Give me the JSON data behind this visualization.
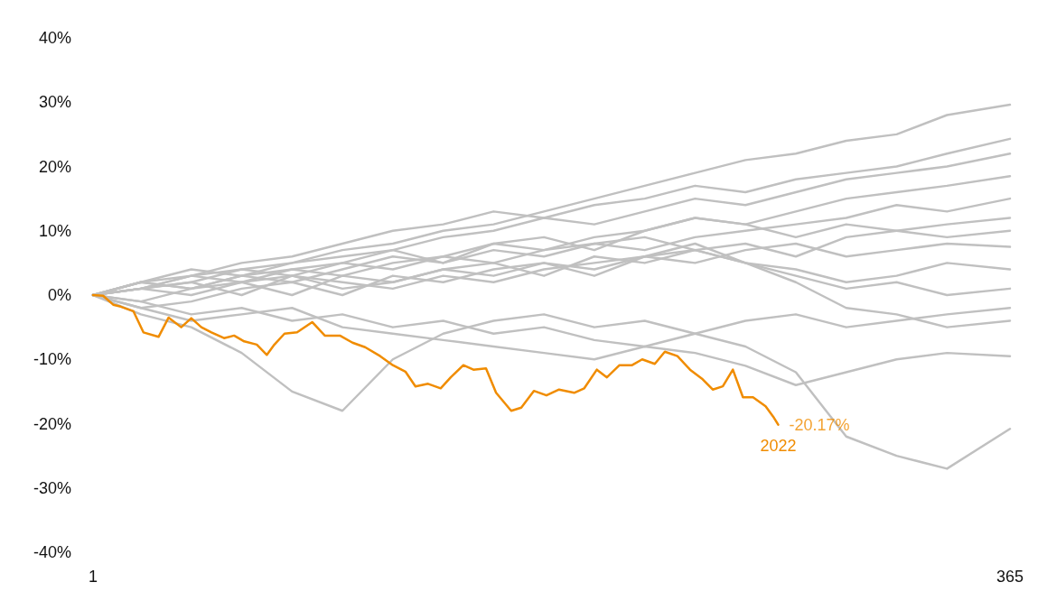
{
  "chart_data": {
    "type": "line",
    "marker": "none",
    "line_style": "solid",
    "x": [
      1,
      20,
      40,
      60,
      80,
      100,
      120,
      140,
      160,
      180,
      200,
      220,
      240,
      260,
      280,
      300,
      320,
      340,
      365
    ],
    "xlim": [
      1,
      365
    ],
    "xticks": [
      1,
      365
    ],
    "ylim": [
      -40,
      40
    ],
    "yticks": [
      {
        "value": -40,
        "label": "-40%"
      },
      {
        "value": -30,
        "label": "-30%"
      },
      {
        "value": -20,
        "label": "-20%"
      },
      {
        "value": -10,
        "label": "-10%"
      },
      {
        "value": 0,
        "label": "0%"
      },
      {
        "value": 10,
        "label": "10%"
      },
      {
        "value": 20,
        "label": "20%"
      },
      {
        "value": 30,
        "label": "30%"
      },
      {
        "value": 40,
        "label": "40%"
      }
    ],
    "annotations": [
      {
        "text": "-20.17%",
        "x": 273,
        "y": -20.17
      }
    ],
    "series": [
      {
        "color": "#c0c0c0",
        "values": [
          0,
          1,
          3,
          4,
          5,
          7,
          8,
          10,
          11,
          13,
          15,
          17,
          19,
          21,
          22,
          24,
          25,
          28,
          29.6
        ]
      },
      {
        "color": "#c0c0c0",
        "values": [
          0,
          2,
          3,
          5,
          6,
          8,
          10,
          11,
          13,
          12,
          14,
          15,
          17,
          16,
          18,
          19,
          20,
          22,
          24.3
        ]
      },
      {
        "color": "#c0c0c0",
        "values": [
          0,
          1,
          2,
          4,
          3,
          5,
          7,
          9,
          10,
          12,
          11,
          13,
          15,
          14,
          16,
          18,
          19,
          20,
          22
        ]
      },
      {
        "color": "#c0c0c0",
        "values": [
          0,
          2,
          1,
          3,
          4,
          3,
          5,
          6,
          8,
          7,
          9,
          10,
          12,
          11,
          13,
          15,
          16,
          17,
          18.5
        ]
      },
      {
        "color": "#c0c0c0",
        "values": [
          0,
          1,
          3,
          2,
          4,
          5,
          4,
          6,
          5,
          7,
          8,
          7,
          9,
          10,
          11,
          12,
          14,
          13,
          15
        ]
      },
      {
        "color": "#c0c0c0",
        "values": [
          0,
          -1,
          1,
          2,
          0,
          3,
          2,
          4,
          5,
          3,
          6,
          5,
          7,
          8,
          6,
          9,
          10,
          11,
          12
        ]
      },
      {
        "color": "#c0c0c0",
        "values": [
          0,
          2,
          4,
          3,
          5,
          6,
          7,
          5,
          8,
          9,
          7,
          10,
          12,
          11,
          9,
          11,
          10,
          9,
          10
        ]
      },
      {
        "color": "#c0c0c0",
        "values": [
          0,
          1,
          0,
          2,
          3,
          1,
          2,
          4,
          3,
          5,
          4,
          6,
          5,
          7,
          8,
          6,
          7,
          8,
          7.5
        ]
      },
      {
        "color": "#c0c0c0",
        "values": [
          0,
          -2,
          -1,
          1,
          2,
          0,
          3,
          2,
          4,
          5,
          3,
          6,
          7,
          5,
          4,
          2,
          3,
          5,
          4
        ]
      },
      {
        "color": "#c0c0c0",
        "values": [
          0,
          2,
          1,
          3,
          2,
          4,
          6,
          5,
          7,
          6,
          8,
          9,
          7,
          5,
          3,
          1,
          2,
          0,
          1
        ]
      },
      {
        "color": "#c0c0c0",
        "values": [
          0,
          -1,
          -3,
          -2,
          -4,
          -3,
          -5,
          -4,
          -6,
          -5,
          -7,
          -8,
          -6,
          -4,
          -3,
          -5,
          -4,
          -3,
          -2
        ]
      },
      {
        "color": "#c0c0c0",
        "values": [
          0,
          1,
          2,
          0,
          3,
          2,
          1,
          3,
          2,
          4,
          5,
          6,
          8,
          5,
          2,
          -2,
          -3,
          -5,
          -4
        ]
      },
      {
        "color": "#c0c0c0",
        "values": [
          0,
          -2,
          -4,
          -3,
          -2,
          -5,
          -6,
          -7,
          -8,
          -9,
          -10,
          -8,
          -9,
          -11,
          -14,
          -12,
          -10,
          -9,
          -9.5
        ]
      },
      {
        "color": "#c0c0c0",
        "values": [
          0,
          -3,
          -5,
          -9,
          -15,
          -18,
          -10,
          -6,
          -4,
          -3,
          -5,
          -4,
          -6,
          -8,
          -12,
          -22,
          -25,
          -27,
          -20.8
        ]
      },
      {
        "name": "2022",
        "color": "#f08c00",
        "x": [
          1,
          5,
          9,
          12,
          17,
          21,
          27,
          31,
          36,
          40,
          44,
          48,
          53,
          57,
          61,
          66,
          70,
          73,
          77,
          82,
          88,
          93,
          99,
          104,
          109,
          115,
          120,
          125,
          129,
          134,
          139,
          143,
          148,
          152,
          157,
          161,
          167,
          171,
          176,
          181,
          186,
          192,
          196,
          201,
          205,
          210,
          215,
          219,
          224,
          228,
          233,
          238,
          243,
          247,
          251,
          255,
          259,
          263,
          268,
          271,
          273
        ],
        "values": [
          0,
          -0.1,
          -1.5,
          -1.8,
          -2.5,
          -5.8,
          -6.5,
          -3.5,
          -5,
          -3.6,
          -5,
          -5.8,
          -6.7,
          -6.3,
          -7.2,
          -7.7,
          -9.3,
          -7.7,
          -6,
          -5.8,
          -4.2,
          -6.3,
          -6.3,
          -7.4,
          -8.1,
          -9.5,
          -10.9,
          -11.9,
          -14.2,
          -13.8,
          -14.5,
          -12.8,
          -10.9,
          -11.6,
          -11.4,
          -15.2,
          -18,
          -17.5,
          -14.9,
          -15.6,
          -14.7,
          -15.2,
          -14.5,
          -11.6,
          -12.8,
          -10.9,
          -10.9,
          -10,
          -10.7,
          -8.8,
          -9.5,
          -11.6,
          -13.1,
          -14.7,
          -14.2,
          -11.6,
          -15.9,
          -15.9,
          -17.3,
          -18.9,
          -20.17
        ]
      }
    ]
  }
}
